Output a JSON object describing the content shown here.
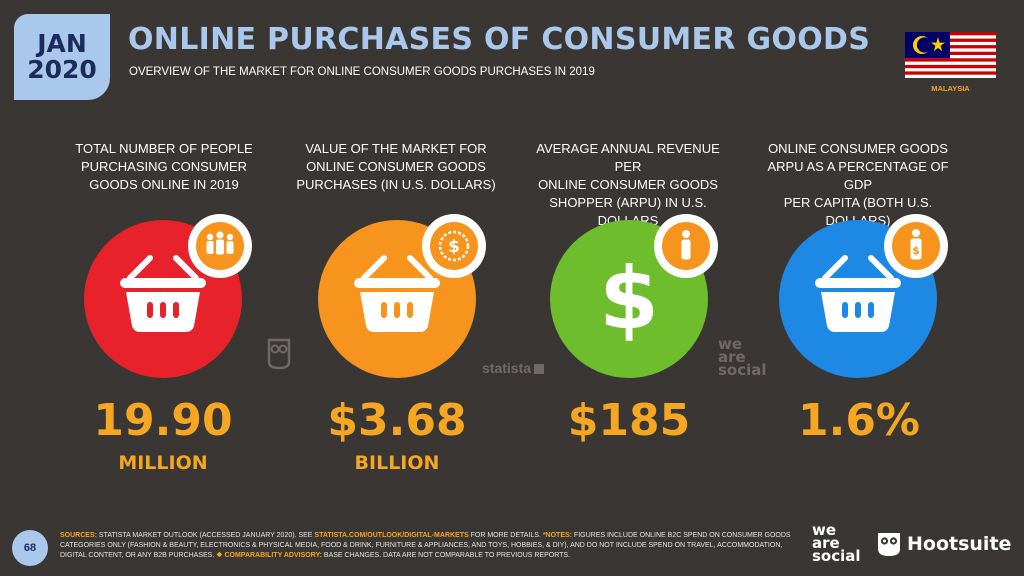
{
  "badge": {
    "month": "JAN",
    "year": "2020"
  },
  "header": {
    "title": "ONLINE PURCHASES OF CONSUMER GOODS",
    "subtitle": "OVERVIEW OF THE MARKET FOR ONLINE CONSUMER GOODS PURCHASES IN 2019"
  },
  "country": "MALAYSIA",
  "metrics": [
    {
      "label_lines": [
        "TOTAL NUMBER OF PEOPLE",
        "PURCHASING CONSUMER",
        "GOODS ONLINE IN 2019"
      ],
      "value": "19.90",
      "unit": "MILLION",
      "circle_color": "#e8222b",
      "badge_icon": "people-group-icon"
    },
    {
      "label_lines": [
        "VALUE OF THE MARKET FOR",
        "ONLINE CONSUMER GOODS",
        "PURCHASES (IN U.S. DOLLARS)"
      ],
      "value": "$3.68",
      "unit": "BILLION",
      "circle_color": "#f7941d",
      "badge_icon": "dollar-seal-icon"
    },
    {
      "label_lines": [
        "AVERAGE ANNUAL REVENUE PER",
        "ONLINE CONSUMER GOODS",
        "SHOPPER (ARPU) IN U.S. DOLLARS"
      ],
      "value": "$185",
      "unit": "",
      "circle_color": "#6dbd2c",
      "badge_icon": "person-icon"
    },
    {
      "label_lines": [
        "ONLINE CONSUMER GOODS",
        "ARPU AS A PERCENTAGE OF GDP",
        "PER CAPITA (BOTH U.S. DOLLARS)"
      ],
      "value": "1.6%",
      "unit": "",
      "circle_color": "#1e88e5",
      "badge_icon": "person-dollar-icon"
    }
  ],
  "watermarks": {
    "statista": "statista",
    "wearesocial": [
      "we",
      "are",
      "social"
    ]
  },
  "footer": {
    "page_number": "68",
    "sources_label": "SOURCES:",
    "sources_text": " STATISTA MARKET OUTLOOK (ACCESSED JANUARY 2020). SEE ",
    "sources_link": "STATISTA.COM/OUTLOOK/DIGITAL-MARKETS",
    "sources_tail": " FOR MORE DETAILS. ",
    "notes_label": "*NOTES:",
    "notes_text": " FIGURES INCLUDE ONLINE B2C SPEND ON CONSUMER GOODS CATEGORIES ONLY (FASHION & BEAUTY, ELECTRONICS & PHYSICAL MEDIA, FOOD & DRINK, FURNITURE & APPLIANCES, AND TOYS, HOBBIES, & DIY), AND DO NOT INCLUDE SPEND ON TRAVEL, ACCOMMODATION, DIGITAL CONTENT, OR ANY B2B PURCHASES. ",
    "advisory_label": "❖ COMPARABILITY ADVISORY:",
    "advisory_text": " BASE CHANGES. DATA ARE NOT COMPARABLE TO PREVIOUS REPORTS.",
    "brand_we": "we",
    "brand_are": "are",
    "brand_social": "social",
    "brand_hootsuite": "Hootsuite"
  }
}
